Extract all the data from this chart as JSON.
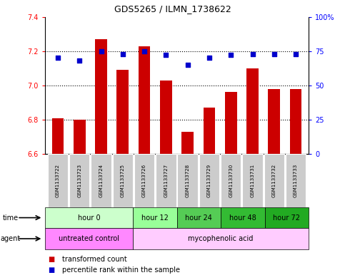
{
  "title": "GDS5265 / ILMN_1738622",
  "samples": [
    "GSM1133722",
    "GSM1133723",
    "GSM1133724",
    "GSM1133725",
    "GSM1133726",
    "GSM1133727",
    "GSM1133728",
    "GSM1133729",
    "GSM1133730",
    "GSM1133731",
    "GSM1133732",
    "GSM1133733"
  ],
  "bar_values": [
    6.81,
    6.8,
    7.27,
    7.09,
    7.23,
    7.03,
    6.73,
    6.87,
    6.96,
    7.1,
    6.98,
    6.98
  ],
  "dot_values": [
    70,
    68,
    75,
    73,
    75,
    72,
    65,
    70,
    72,
    73,
    73,
    73
  ],
  "bar_bottom": 6.6,
  "ylim_left": [
    6.6,
    7.4
  ],
  "ylim_right": [
    0,
    100
  ],
  "yticks_left": [
    6.6,
    6.8,
    7.0,
    7.2,
    7.4
  ],
  "yticks_right": [
    0,
    25,
    50,
    75,
    100
  ],
  "bar_color": "#cc0000",
  "dot_color": "#0000cc",
  "time_groups": [
    {
      "label": "hour 0",
      "n": 4,
      "color": "#ccffcc"
    },
    {
      "label": "hour 12",
      "n": 2,
      "color": "#99ff99"
    },
    {
      "label": "hour 24",
      "n": 2,
      "color": "#55cc55"
    },
    {
      "label": "hour 48",
      "n": 2,
      "color": "#33bb33"
    },
    {
      "label": "hour 72",
      "n": 2,
      "color": "#22aa22"
    }
  ],
  "agent_groups": [
    {
      "label": "untreated control",
      "n": 4,
      "color": "#ff88ff"
    },
    {
      "label": "mycophenolic acid",
      "n": 8,
      "color": "#ffccff"
    }
  ],
  "legend_bar_label": "transformed count",
  "legend_dot_label": "percentile rank within the sample",
  "bg_color": "#ffffff",
  "sample_bg_color": "#cccccc"
}
